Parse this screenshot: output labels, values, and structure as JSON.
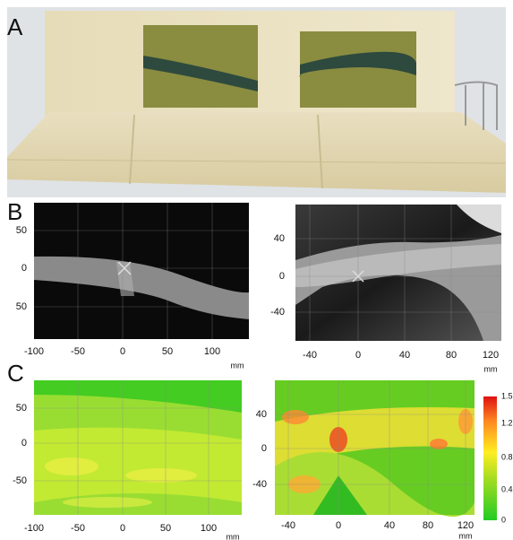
{
  "panels": [
    {
      "letter": "A"
    },
    {
      "letter": "B",
      "left": {
        "yticks": [
          "50",
          "0",
          "50"
        ],
        "xticks": [
          "-100",
          "-50",
          "0",
          "50",
          "100"
        ],
        "unit": "mm"
      },
      "right": {
        "yticks": [
          "40",
          "0",
          "-40"
        ],
        "xticks": [
          "-40",
          "0",
          "40",
          "80",
          "120"
        ],
        "unit": "mm"
      }
    },
    {
      "letter": "C",
      "left": {
        "yticks": [
          "50",
          "0",
          "-50"
        ],
        "xticks": [
          "-100",
          "-50",
          "0",
          "50",
          "100"
        ],
        "unit": "mm"
      },
      "right": {
        "yticks": [
          "40",
          "0",
          "-40"
        ],
        "xticks": [
          "-40",
          "0",
          "40",
          "80",
          "120"
        ],
        "unit": "mm"
      },
      "colorbar": [
        "1.5",
        "1.2",
        "0.8",
        "0.4",
        "0"
      ]
    }
  ]
}
